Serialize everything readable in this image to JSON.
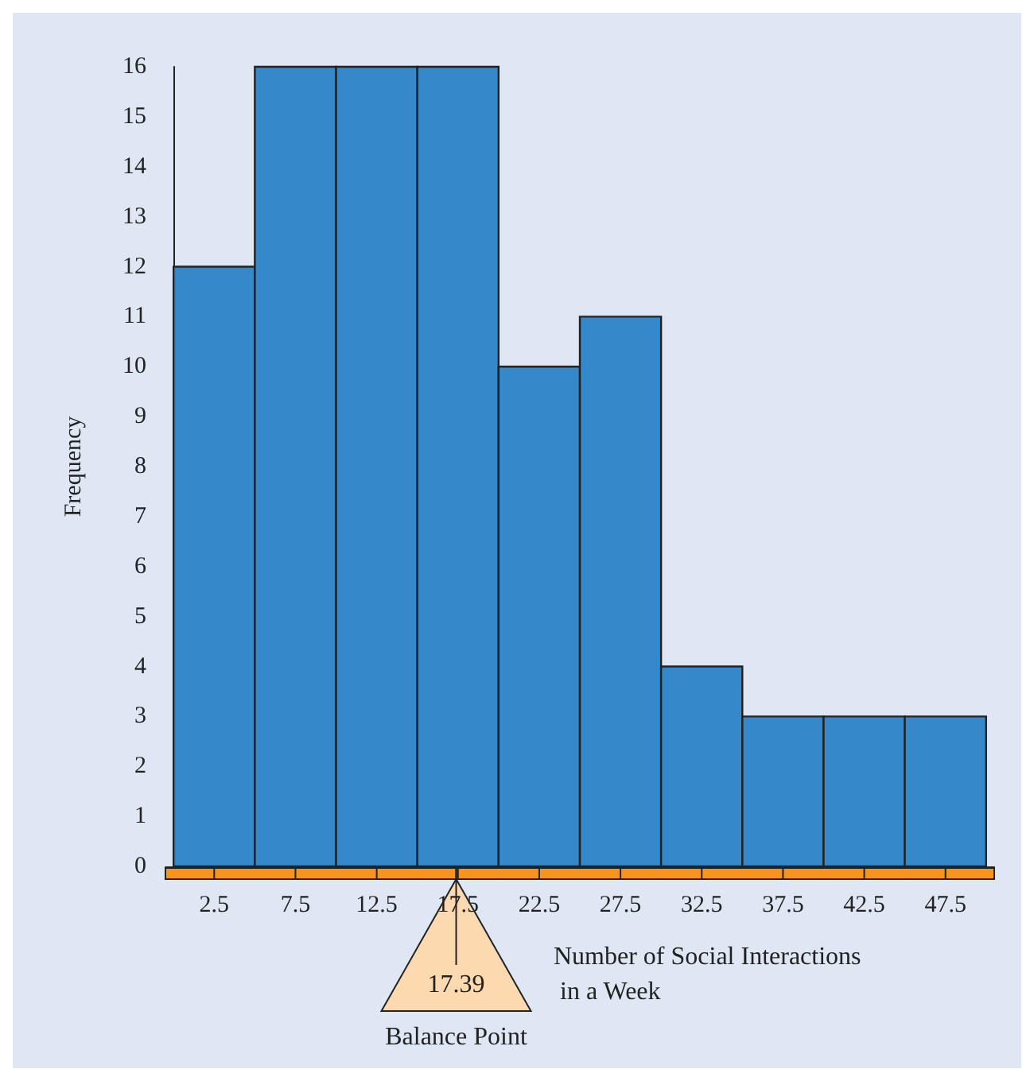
{
  "chart_data": {
    "type": "histogram",
    "xlabel": "Number of Social Interactions in a Week",
    "ylabel": "Frequency",
    "bins": [
      0,
      5,
      10,
      15,
      20,
      25,
      30,
      35,
      40,
      45,
      50
    ],
    "values": [
      12,
      16,
      16,
      16,
      10,
      11,
      4,
      3,
      3,
      3
    ],
    "color": "#3589cb",
    "xlim": [
      -0.5,
      50.5
    ],
    "xticks": [
      2.5,
      7.5,
      12.5,
      17.5,
      22.5,
      27.5,
      32.5,
      37.5,
      42.5,
      47.5
    ],
    "ylim": [
      0,
      16
    ],
    "yticks": [
      0,
      1,
      2,
      3,
      4,
      5,
      6,
      7,
      8,
      9,
      10,
      11,
      12,
      13,
      14,
      15,
      16
    ],
    "grid": false,
    "annotations": [
      {
        "text": "17.39",
        "x": 17.39,
        "y": 0
      },
      "Balance Point"
    ]
  }
}
